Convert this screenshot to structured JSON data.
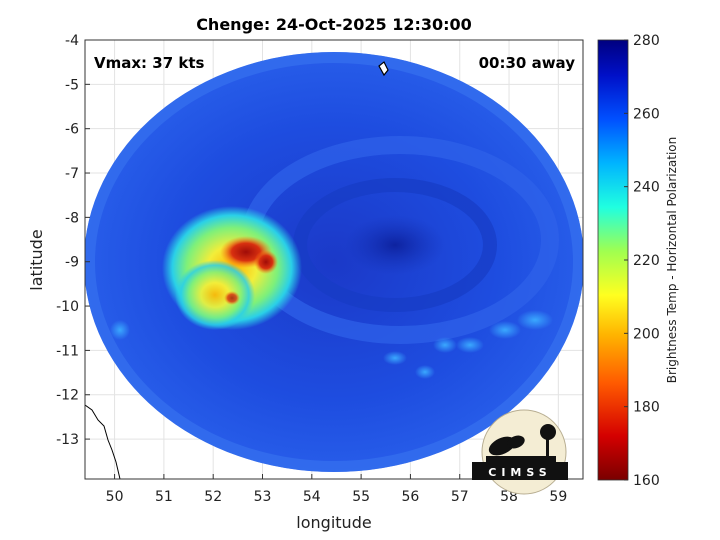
{
  "title": "Chenge: 24-Oct-2025 12:30:00",
  "annotations": {
    "vmax": "Vmax: 37 kts",
    "time_away": "00:30 away"
  },
  "x_axis": {
    "label": "longitude",
    "range": [
      49.4,
      59.5
    ],
    "ticks": [
      "50",
      "51",
      "52",
      "53",
      "54",
      "55",
      "56",
      "57",
      "58",
      "59"
    ]
  },
  "y_axis": {
    "label": "latitude",
    "range": [
      -13.9,
      -4
    ],
    "ticks": [
      "-4",
      "-5",
      "-6",
      "-7",
      "-8",
      "-9",
      "-10",
      "-11",
      "-12",
      "-13"
    ]
  },
  "colorbar": {
    "label": "Brightness Temp - Horizontal Polarization",
    "range": [
      160,
      280
    ],
    "ticks": [
      "280",
      "260",
      "240",
      "220",
      "200",
      "180",
      "160"
    ]
  },
  "logo": {
    "text": "CIMSS"
  },
  "colors": {
    "background_field": "#1c4fe0",
    "warm_core": "#b81a10",
    "convection": "#f0e83a"
  }
}
